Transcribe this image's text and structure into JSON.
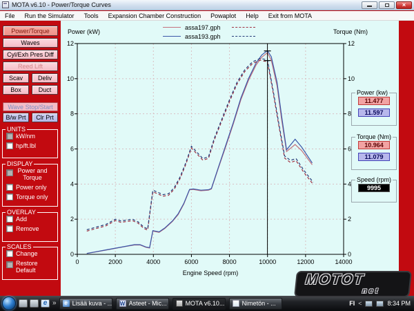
{
  "window": {
    "title": "MOTA v6.10 - Power/Torque Curves",
    "close_glyph": "×"
  },
  "menu": {
    "items": [
      "File",
      "Run the Simulator",
      "Tools",
      "Expansion Chamber Construction",
      "Powaplot",
      "Help",
      "Exit from MOTA"
    ]
  },
  "sidebar": {
    "buttons": {
      "power_torque": "Power/Torque",
      "waves": "Waves",
      "cyl_exh": "Cyl/Exh Pres Diff",
      "reed_lift": "Reed Lift",
      "scav": "Scav",
      "deliv": "Deliv",
      "box": "Box",
      "duct": "Duct",
      "wave_stop": "Wave Stop/Start",
      "bw_prt": "B/w Prt",
      "clr_prt": "Clr Prt"
    },
    "groups": {
      "units": {
        "title": "UNITS",
        "opt1": {
          "label": "kW/nm",
          "checked": true
        },
        "opt2": {
          "label": "hp/ft.lbl",
          "checked": false
        }
      },
      "display": {
        "title": "DISPLAY",
        "opt1": {
          "label": "Power and Torque",
          "checked": true
        },
        "opt2": {
          "label": "Power only",
          "checked": false
        },
        "opt3": {
          "label": "Torque only",
          "checked": false
        }
      },
      "overlay": {
        "title": "OVERLAY",
        "opt1": {
          "label": "Add",
          "checked": false
        },
        "opt2": {
          "label": "Remove",
          "checked": false
        }
      },
      "scales": {
        "title": "SCALES",
        "opt1": {
          "label": "Change",
          "checked": false
        },
        "opt2": {
          "label": "Restore Default",
          "checked": true
        }
      }
    }
  },
  "chart_data": {
    "type": "line",
    "xlabel": "Engine Speed (rpm)",
    "ylabel_left": "Power (kW)",
    "ylabel_right": "Torque (Nm)",
    "xlim": [
      0,
      14000
    ],
    "ylim_left": [
      0,
      12
    ],
    "ylim_right": [
      0,
      12
    ],
    "xticks": [
      0,
      2000,
      4000,
      6000,
      8000,
      10000,
      12000,
      14000
    ],
    "yticks": [
      0,
      2,
      4,
      6,
      8,
      10,
      12
    ],
    "grid": "dashed",
    "legend_position": "top-center",
    "cursor_rpm": 9995,
    "cursor_marks": [
      11.58,
      11.03
    ],
    "series": [
      {
        "name": "assa197.gph",
        "quantity": "power_kW",
        "style": "solid",
        "axis": "left",
        "color": "#c4707c",
        "x": [
          500,
          1000,
          1500,
          2000,
          2500,
          3000,
          3300,
          3600,
          3800,
          3970,
          4300,
          4600,
          5000,
          5300,
          5600,
          5900,
          6100,
          6500,
          6900,
          7050,
          7400,
          7800,
          8200,
          8600,
          9000,
          9400,
          9700,
          9995,
          10200,
          10500,
          10750,
          11000,
          11450,
          11800,
          12350
        ],
        "y": [
          0.05,
          0.14,
          0.24,
          0.34,
          0.44,
          0.53,
          0.53,
          0.4,
          0.36,
          1.32,
          1.25,
          1.47,
          1.87,
          2.26,
          2.86,
          3.67,
          3.69,
          3.62,
          3.65,
          3.72,
          4.85,
          6.12,
          7.42,
          8.8,
          9.9,
          10.78,
          11.22,
          11.48,
          11.05,
          9.6,
          7.6,
          5.85,
          6.25,
          5.9,
          5.1
        ]
      },
      {
        "name": "assa193.gph",
        "quantity": "power_kW",
        "style": "solid",
        "axis": "left",
        "color": "#3a56a8",
        "x": [
          500,
          1000,
          1500,
          2000,
          2500,
          3000,
          3300,
          3600,
          3800,
          3970,
          4300,
          4600,
          5000,
          5300,
          5600,
          5900,
          6100,
          6500,
          6900,
          7050,
          7400,
          7800,
          8200,
          8600,
          9000,
          9400,
          9700,
          9995,
          10200,
          10500,
          10750,
          11000,
          11450,
          11800,
          12350
        ],
        "y": [
          0.05,
          0.15,
          0.25,
          0.35,
          0.45,
          0.55,
          0.55,
          0.42,
          0.38,
          1.35,
          1.28,
          1.5,
          1.9,
          2.3,
          2.9,
          3.7,
          3.72,
          3.65,
          3.68,
          3.75,
          4.9,
          6.2,
          7.5,
          8.9,
          10.0,
          10.9,
          11.35,
          11.6,
          11.25,
          9.8,
          7.8,
          5.95,
          6.55,
          6.1,
          5.2
        ]
      },
      {
        "name": "assa197.gph",
        "quantity": "torque_Nm",
        "style": "dashed",
        "axis": "right",
        "color": "#a03040",
        "x": [
          500,
          1000,
          1500,
          2000,
          2300,
          2600,
          2900,
          3200,
          3500,
          3700,
          3970,
          4200,
          4500,
          4800,
          5100,
          5400,
          5700,
          6000,
          6300,
          6600,
          6900,
          7200,
          7600,
          8000,
          8400,
          8800,
          9200,
          9600,
          9995,
          10300,
          10600,
          10900,
          11200,
          11500,
          11900,
          12400
        ],
        "y": [
          1.32,
          1.47,
          1.62,
          1.92,
          1.82,
          1.87,
          1.92,
          1.77,
          1.47,
          1.38,
          3.56,
          3.46,
          3.31,
          3.36,
          3.71,
          4.31,
          5.11,
          6.05,
          5.7,
          5.36,
          5.46,
          6.5,
          7.6,
          8.7,
          9.7,
          10.4,
          10.85,
          11.05,
          10.96,
          9.18,
          7.28,
          5.48,
          5.23,
          5.33,
          4.68,
          3.98
        ]
      },
      {
        "name": "assa193.gph",
        "quantity": "torque_Nm",
        "style": "dashed",
        "axis": "right",
        "color": "#243a78",
        "x": [
          500,
          1000,
          1500,
          2000,
          2300,
          2600,
          2900,
          3200,
          3500,
          3700,
          3970,
          4200,
          4500,
          4800,
          5100,
          5400,
          5700,
          6000,
          6300,
          6600,
          6900,
          7200,
          7600,
          8000,
          8400,
          8800,
          9200,
          9600,
          9995,
          10300,
          10600,
          10900,
          11200,
          11500,
          11900,
          12400
        ],
        "y": [
          1.4,
          1.55,
          1.7,
          2.0,
          1.9,
          1.95,
          2.0,
          1.85,
          1.55,
          1.45,
          3.65,
          3.55,
          3.4,
          3.45,
          3.8,
          4.4,
          5.2,
          6.15,
          5.8,
          5.45,
          5.55,
          6.6,
          7.7,
          8.8,
          9.8,
          10.5,
          10.95,
          11.15,
          11.08,
          9.3,
          7.4,
          5.6,
          5.35,
          5.45,
          4.8,
          4.1
        ]
      }
    ]
  },
  "legend": {
    "entry1": "assa197.gph",
    "entry2": "assa193.gph"
  },
  "right_panel": {
    "power": {
      "title": "Power (kw)",
      "value_red": "11.477",
      "value_blue": "11.597"
    },
    "torque": {
      "title": "Torque (Nm)",
      "value_red": "10.964",
      "value_blue": "11.079"
    },
    "speed": {
      "title": "Speed (rpm)",
      "value": "9995"
    }
  },
  "taskbar": {
    "overflow_glyph": "»",
    "ie_glyph": "e",
    "word_glyph": "W",
    "tasks": {
      "t1": "Lisää kuva - ...",
      "t2": "Asteet - Mic...",
      "t3": "MOTA v6.10...",
      "t4": "Nimetön - ..."
    },
    "tray": {
      "lang": "FI",
      "chevron": "<",
      "time": "8:34 PM"
    }
  },
  "watermark": {
    "line1": "MOTOT",
    "line2": "net"
  },
  "colors": {
    "window_bg": "#c20a10",
    "chart_bg": "#e1faf8",
    "grid": "#d9bfc2",
    "value_red_bg": "#f2a3a3",
    "value_blue_bg": "#b7b7ec"
  }
}
